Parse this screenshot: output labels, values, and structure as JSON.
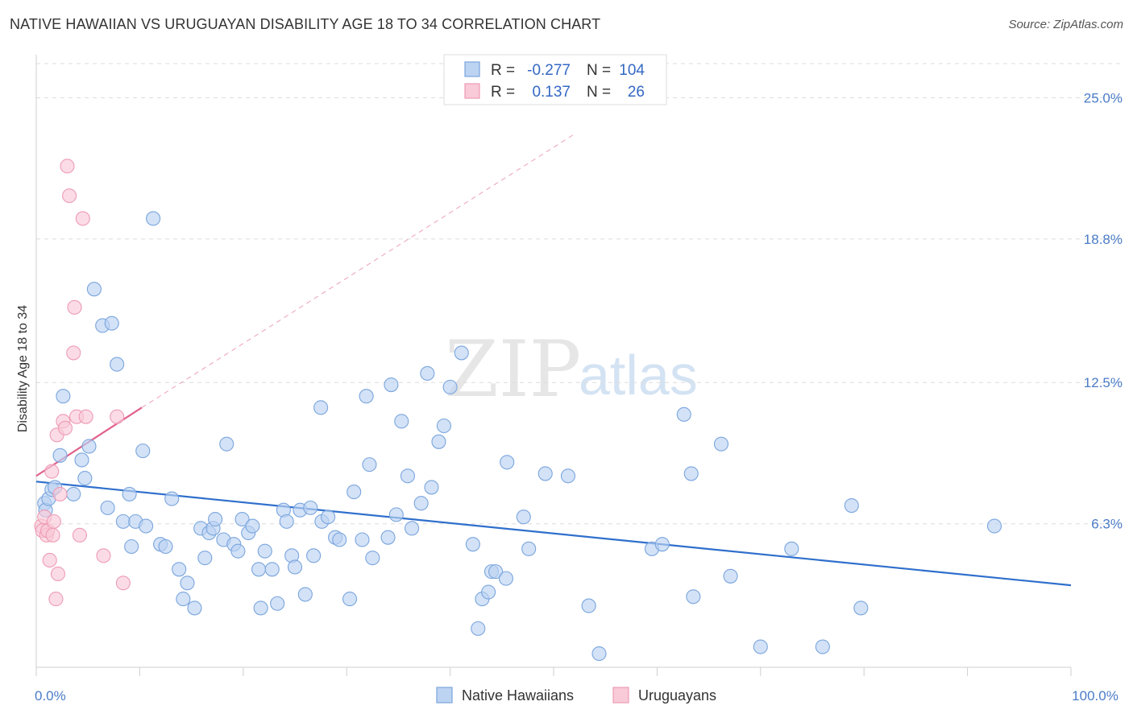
{
  "header": {
    "title": "NATIVE HAWAIIAN VS URUGUAYAN DISABILITY AGE 18 TO 34 CORRELATION CHART",
    "source": "Source: ZipAtlas.com"
  },
  "watermark": {
    "zip": "ZIP",
    "atlas": "atlas"
  },
  "legend": {
    "r_label": "R =",
    "n_label": "N =",
    "items": [
      {
        "name": "Native Hawaiians",
        "r": "-0.277",
        "n": "104",
        "color": "#8fb4e8"
      },
      {
        "name": "Uruguayans",
        "r": "0.137",
        "n": "26",
        "color": "#f2a7bd"
      }
    ]
  },
  "colors": {
    "blue_fill": "#bcd3f2",
    "blue_stroke": "#7aa5dd",
    "blue_line": "#2f6fcc",
    "pink_fill": "#f9cad8",
    "pink_stroke": "#ee9bb5",
    "pink_line": "#e0608a",
    "tick_text": "#4a7cc7"
  },
  "chart_data": {
    "type": "scatter",
    "title": "NATIVE HAWAIIAN VS URUGUAYAN DISABILITY AGE 18 TO 34 CORRELATION CHART",
    "xlabel": "",
    "ylabel": "Disability Age 18 to 34",
    "xlim": [
      0,
      100
    ],
    "ylim": [
      0,
      26.5
    ],
    "x_tick_labels": [
      {
        "value": 0,
        "label": "0.0%"
      },
      {
        "value": 100,
        "label": "100.0%"
      }
    ],
    "y_tick_labels": [
      {
        "value": 6.3,
        "label": "6.3%"
      },
      {
        "value": 12.5,
        "label": "12.5%"
      },
      {
        "value": 18.8,
        "label": "18.8%"
      },
      {
        "value": 25.0,
        "label": "25.0%"
      }
    ],
    "series": [
      {
        "name": "Native Hawaiians",
        "trend": {
          "x0": 0,
          "y0": 8.15,
          "x1": 100,
          "y1": 3.6,
          "dashed_extension": false
        },
        "points": [
          [
            0.8,
            7.2
          ],
          [
            0.9,
            6.9
          ],
          [
            1.2,
            7.4
          ],
          [
            1.5,
            7.8
          ],
          [
            1.8,
            7.9
          ],
          [
            2.3,
            9.3
          ],
          [
            2.6,
            11.9
          ],
          [
            3.6,
            7.6
          ],
          [
            4.4,
            9.1
          ],
          [
            4.7,
            8.3
          ],
          [
            5.1,
            9.7
          ],
          [
            5.6,
            16.6
          ],
          [
            6.4,
            15.0
          ],
          [
            6.9,
            7.0
          ],
          [
            7.3,
            15.1
          ],
          [
            7.8,
            13.3
          ],
          [
            8.4,
            6.4
          ],
          [
            9.0,
            7.6
          ],
          [
            9.2,
            5.3
          ],
          [
            9.6,
            6.4
          ],
          [
            10.3,
            9.5
          ],
          [
            10.6,
            6.2
          ],
          [
            11.3,
            19.7
          ],
          [
            12.0,
            5.4
          ],
          [
            12.5,
            5.3
          ],
          [
            13.1,
            7.4
          ],
          [
            13.8,
            4.3
          ],
          [
            14.2,
            3.0
          ],
          [
            14.6,
            3.7
          ],
          [
            15.3,
            2.6
          ],
          [
            15.9,
            6.1
          ],
          [
            16.3,
            4.8
          ],
          [
            16.7,
            5.9
          ],
          [
            17.1,
            6.1
          ],
          [
            17.3,
            6.5
          ],
          [
            18.1,
            5.6
          ],
          [
            18.4,
            9.8
          ],
          [
            19.1,
            5.4
          ],
          [
            19.5,
            5.1
          ],
          [
            19.9,
            6.5
          ],
          [
            20.5,
            5.9
          ],
          [
            20.9,
            6.2
          ],
          [
            21.5,
            4.3
          ],
          [
            21.7,
            2.6
          ],
          [
            22.1,
            5.1
          ],
          [
            22.8,
            4.3
          ],
          [
            23.3,
            2.8
          ],
          [
            23.9,
            6.9
          ],
          [
            24.2,
            6.4
          ],
          [
            24.7,
            4.9
          ],
          [
            25.0,
            4.4
          ],
          [
            25.5,
            6.9
          ],
          [
            26.0,
            3.2
          ],
          [
            26.5,
            7.0
          ],
          [
            26.8,
            4.9
          ],
          [
            27.5,
            11.4
          ],
          [
            27.6,
            6.4
          ],
          [
            28.2,
            6.6
          ],
          [
            28.9,
            5.7
          ],
          [
            29.3,
            5.6
          ],
          [
            30.3,
            3.0
          ],
          [
            30.7,
            7.7
          ],
          [
            31.5,
            5.6
          ],
          [
            31.9,
            11.9
          ],
          [
            32.2,
            8.9
          ],
          [
            32.5,
            4.8
          ],
          [
            34.0,
            5.7
          ],
          [
            34.3,
            12.4
          ],
          [
            34.8,
            6.7
          ],
          [
            35.3,
            10.8
          ],
          [
            35.9,
            8.4
          ],
          [
            36.3,
            6.1
          ],
          [
            37.2,
            7.2
          ],
          [
            37.8,
            12.9
          ],
          [
            38.2,
            7.9
          ],
          [
            38.9,
            9.9
          ],
          [
            39.4,
            10.6
          ],
          [
            40.0,
            12.3
          ],
          [
            41.1,
            13.8
          ],
          [
            42.2,
            5.4
          ],
          [
            42.7,
            1.7
          ],
          [
            43.1,
            3.0
          ],
          [
            43.7,
            3.3
          ],
          [
            44.0,
            4.2
          ],
          [
            44.4,
            4.2
          ],
          [
            45.4,
            3.9
          ],
          [
            45.5,
            9.0
          ],
          [
            47.1,
            6.6
          ],
          [
            47.6,
            5.2
          ],
          [
            49.2,
            8.5
          ],
          [
            51.4,
            8.4
          ],
          [
            53.4,
            2.7
          ],
          [
            54.4,
            0.6
          ],
          [
            59.5,
            5.2
          ],
          [
            60.5,
            5.4
          ],
          [
            62.6,
            11.1
          ],
          [
            63.3,
            8.5
          ],
          [
            63.5,
            3.1
          ],
          [
            66.2,
            9.8
          ],
          [
            67.1,
            4.0
          ],
          [
            70.0,
            0.9
          ],
          [
            73.0,
            5.2
          ],
          [
            76.0,
            0.9
          ],
          [
            78.8,
            7.1
          ],
          [
            79.7,
            2.6
          ],
          [
            92.6,
            6.2
          ]
        ]
      },
      {
        "name": "Uruguayans",
        "trend": {
          "x0": 0,
          "y0": 8.4,
          "x1": 10.2,
          "y1": 11.4,
          "dashed_to_x": 52,
          "dashed_to_y": 23.4
        },
        "points": [
          [
            0.5,
            6.2
          ],
          [
            0.6,
            6.0
          ],
          [
            0.8,
            6.6
          ],
          [
            1.0,
            5.8
          ],
          [
            1.1,
            6.0
          ],
          [
            1.3,
            4.7
          ],
          [
            1.5,
            8.6
          ],
          [
            1.6,
            5.8
          ],
          [
            1.7,
            6.4
          ],
          [
            1.9,
            3.0
          ],
          [
            2.0,
            10.2
          ],
          [
            2.1,
            4.1
          ],
          [
            2.3,
            7.6
          ],
          [
            2.6,
            10.8
          ],
          [
            2.8,
            10.5
          ],
          [
            3.0,
            22.0
          ],
          [
            3.2,
            20.7
          ],
          [
            3.6,
            13.8
          ],
          [
            3.7,
            15.8
          ],
          [
            3.9,
            11.0
          ],
          [
            4.2,
            5.8
          ],
          [
            4.5,
            19.7
          ],
          [
            4.8,
            11.0
          ],
          [
            6.5,
            4.9
          ],
          [
            7.8,
            11.0
          ],
          [
            8.4,
            3.7
          ]
        ]
      }
    ]
  }
}
